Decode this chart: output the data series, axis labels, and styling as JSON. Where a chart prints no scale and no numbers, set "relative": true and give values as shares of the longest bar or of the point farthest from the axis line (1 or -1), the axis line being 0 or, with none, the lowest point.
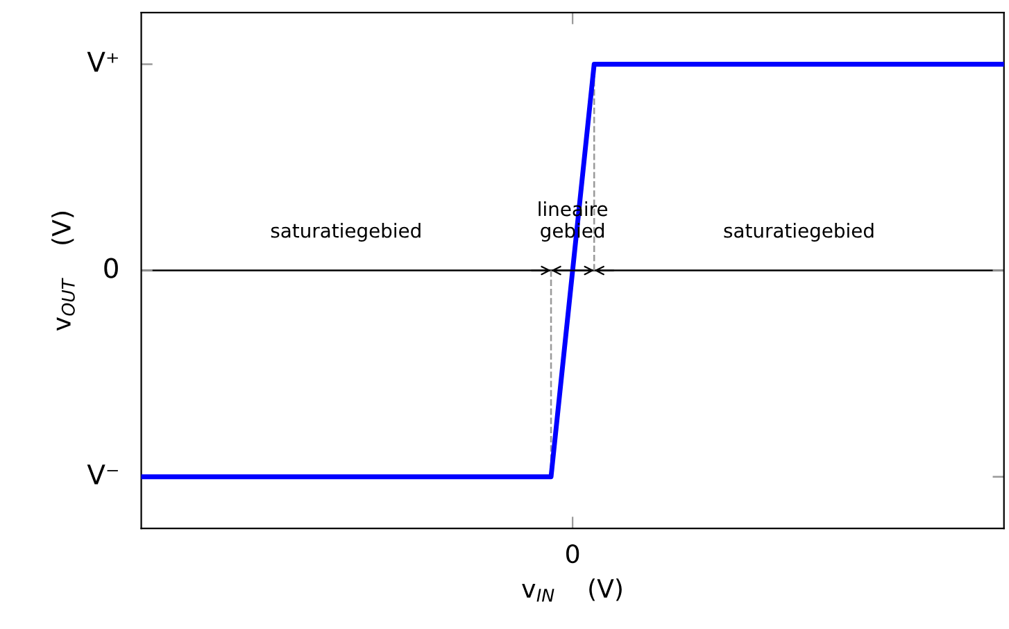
{
  "chart_data": {
    "type": "line",
    "xlabel": "v$_{IN}$    (V)",
    "ylabel": "v$_{OUT}$    (V)",
    "categories": [
      null,
      null,
      null,
      null,
      null,
      null,
      null,
      null,
      null,
      null,
      null,
      null,
      null,
      null,
      null,
      null,
      null,
      null,
      null,
      null,
      null,
      null,
      null,
      null,
      null,
      null,
      null,
      null,
      null,
      null,
      null,
      null,
      null,
      null,
      null,
      null,
      null,
      null,
      null,
      null,
      null
    ],
    "series": [
      {
        "color": "#0000ff",
        "values": [
          -1,
          -1,
          -1,
          -1,
          -1,
          -1,
          -1,
          -1,
          -1,
          -1,
          -1,
          -1,
          -1,
          -1,
          -1,
          -1,
          -1,
          -1,
          -1,
          -1,
          0,
          1,
          1,
          1,
          1,
          1,
          1,
          1,
          1,
          1,
          1,
          1,
          1,
          1,
          1,
          1,
          1,
          1,
          1,
          1,
          1
        ]
      }
    ],
    "relative": true,
    "ref_lines": [
      {
        "axis": "y",
        "value": 0,
        "color": "#000000",
        "line_style": "solid"
      }
    ],
    "annotations": [
      "saturatiegebied",
      "lineaire\ngebied",
      "saturatiegebied",
      "0",
      "V⁺",
      "0",
      "V⁻"
    ],
    "grid": false,
    "legend": false
  }
}
